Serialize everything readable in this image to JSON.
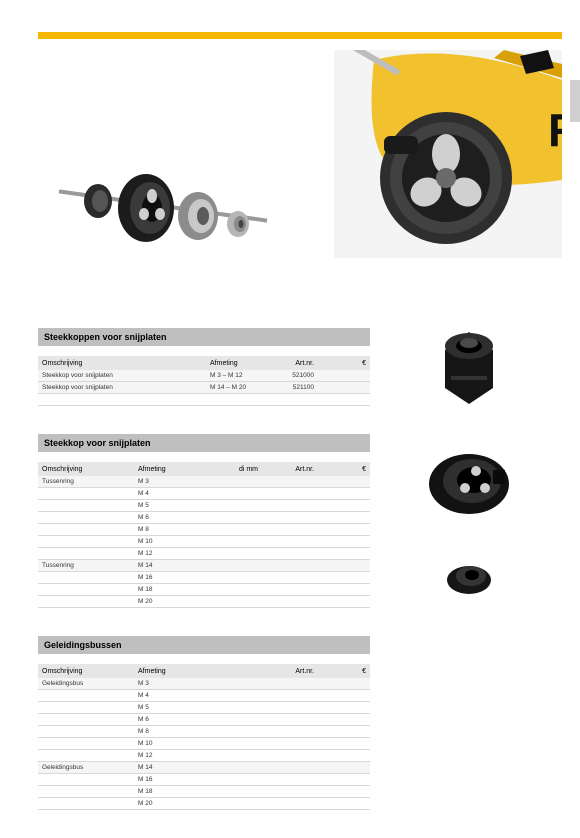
{
  "colors": {
    "accent": "#f5b800",
    "tab": "#cfcfcf",
    "thead": "#bfbfbf",
    "rowhead": "#e6e6e6",
    "line": "#d8d8d8",
    "tool_yellow": "#f1c22e",
    "tool_dark": "#2a2a2a",
    "steel_light": "#c9c9c9",
    "steel_mid": "#888888",
    "steel_dark": "#333333"
  },
  "tables": [
    {
      "title": "Steekkoppen voor snijplaten",
      "layout": "A",
      "columns": [
        "Omschrijving",
        "Afmeting",
        "Art.nr.",
        "€"
      ],
      "rows": [
        [
          "Steekkop voor snijplaten",
          "M 3 – M 12",
          "521000",
          ""
        ],
        [
          "Steekkop voor snijplaten",
          "M 14 – M 20",
          "521100",
          ""
        ],
        [
          "",
          "",
          "",
          ""
        ]
      ]
    },
    {
      "title": "Steekkop voor snijplaten",
      "layout": "B",
      "columns": [
        "Omschrijving",
        "Afmeting",
        "di mm",
        "Art.nr.",
        "€"
      ],
      "rows": [
        [
          "Tussenring",
          "M 3",
          "",
          "",
          ""
        ],
        [
          "",
          "M 4",
          "",
          "",
          ""
        ],
        [
          "",
          "M 5",
          "",
          "",
          ""
        ],
        [
          "",
          "M 6",
          "",
          "",
          ""
        ],
        [
          "",
          "M 8",
          "",
          "",
          ""
        ],
        [
          "",
          "M 10",
          "",
          "",
          ""
        ],
        [
          "",
          "M 12",
          "",
          "",
          ""
        ],
        [
          "Tussenring",
          "M 14",
          "",
          "",
          ""
        ],
        [
          "",
          "M 16",
          "",
          "",
          ""
        ],
        [
          "",
          "M 18",
          "",
          "",
          ""
        ],
        [
          "",
          "M 20",
          "",
          "",
          ""
        ]
      ]
    },
    {
      "title": "Geleidingsbussen",
      "layout": "B",
      "columns": [
        "Omschrijving",
        "Afmeting",
        "",
        "Art.nr.",
        "€"
      ],
      "rows": [
        [
          "Geleidingsbus",
          "M 3",
          "",
          "",
          ""
        ],
        [
          "",
          "M 4",
          "",
          "",
          ""
        ],
        [
          "",
          "M 5",
          "",
          "",
          ""
        ],
        [
          "",
          "M 6",
          "",
          "",
          ""
        ],
        [
          "",
          "M 8",
          "",
          "",
          ""
        ],
        [
          "",
          "M 10",
          "",
          "",
          ""
        ],
        [
          "",
          "M 12",
          "",
          "",
          ""
        ],
        [
          "Geleidingsbus",
          "M 14",
          "",
          "",
          ""
        ],
        [
          "",
          "M 16",
          "",
          "",
          ""
        ],
        [
          "",
          "M 18",
          "",
          "",
          ""
        ],
        [
          "",
          "M 20",
          "",
          "",
          ""
        ]
      ]
    }
  ]
}
